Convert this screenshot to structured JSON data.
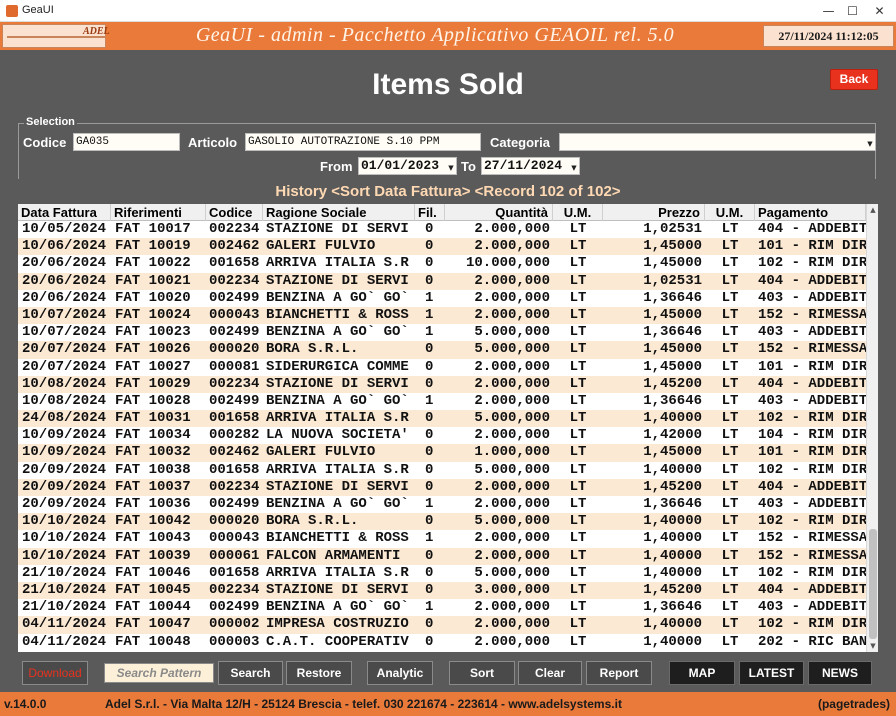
{
  "window": {
    "title": "GeaUI",
    "minimize_glyph": "—",
    "maximize_glyph": "☐",
    "close_glyph": "✕"
  },
  "banner": {
    "logo_text": "ADEL",
    "title": "GeaUI - admin - Pacchetto Applicativo GEAOIL rel. 5.0",
    "datetime": "27/11/2024 11:12:05"
  },
  "page": {
    "title": "Items Sold",
    "back_label": "Back"
  },
  "selection": {
    "legend": "Selection",
    "codice_label": "Codice",
    "codice_value": "GA035",
    "articolo_label": "Articolo",
    "articolo_value": "GASOLIO AUTOTRAZIONE S.10 PPM",
    "categoria_label": "Categoria",
    "categoria_value": "",
    "from_label": "From",
    "from_value": "01/01/2023",
    "to_label": "To",
    "to_value": "27/11/2024"
  },
  "history": {
    "title": "History <Sort Data Fattura> <Record 102 of 102>"
  },
  "table": {
    "headers": [
      "Data Fattura",
      "Riferimenti",
      "Codice",
      "Ragione Sociale",
      "Fil.",
      "Quantità",
      "U.M.",
      "Prezzo",
      "U.M.",
      "Pagamento"
    ],
    "rows": [
      [
        "10/05/2024",
        "FAT 10017",
        "002234",
        "STAZIONE DI SERVI",
        "0",
        "2.000,000",
        "LT",
        "1,02531",
        "LT",
        "404 - ADDEBIT"
      ],
      [
        "10/06/2024",
        "FAT 10019",
        "002462",
        "GALERI FULVIO",
        "0",
        "2.000,000",
        "LT",
        "1,45000",
        "LT",
        "101 - RIM DIR"
      ],
      [
        "20/06/2024",
        "FAT 10022",
        "001658",
        "ARRIVA ITALIA S.R",
        "0",
        "10.000,000",
        "LT",
        "1,45000",
        "LT",
        "102 - RIM DIR"
      ],
      [
        "20/06/2024",
        "FAT 10021",
        "002234",
        "STAZIONE DI SERVI",
        "0",
        "2.000,000",
        "LT",
        "1,02531",
        "LT",
        "404 - ADDEBIT"
      ],
      [
        "20/06/2024",
        "FAT 10020",
        "002499",
        "BENZINA A GO` GO`",
        "1",
        "2.000,000",
        "LT",
        "1,36646",
        "LT",
        "403 - ADDEBIT"
      ],
      [
        "10/07/2024",
        "FAT 10024",
        "000043",
        "BIANCHETTI & ROSS",
        "1",
        "2.000,000",
        "LT",
        "1,45000",
        "LT",
        "152 - RIMESSA"
      ],
      [
        "10/07/2024",
        "FAT 10023",
        "002499",
        "BENZINA A GO` GO`",
        "1",
        "5.000,000",
        "LT",
        "1,36646",
        "LT",
        "403 - ADDEBIT"
      ],
      [
        "20/07/2024",
        "FAT 10026",
        "000020",
        "BORA S.R.L.",
        "0",
        "5.000,000",
        "LT",
        "1,45000",
        "LT",
        "152 - RIMESSA"
      ],
      [
        "20/07/2024",
        "FAT 10027",
        "000081",
        "SIDERURGICA COMME",
        "0",
        "2.000,000",
        "LT",
        "1,45000",
        "LT",
        "101 - RIM DIR"
      ],
      [
        "10/08/2024",
        "FAT 10029",
        "002234",
        "STAZIONE DI SERVI",
        "0",
        "2.000,000",
        "LT",
        "1,45200",
        "LT",
        "404 - ADDEBIT"
      ],
      [
        "10/08/2024",
        "FAT 10028",
        "002499",
        "BENZINA A GO` GO`",
        "1",
        "2.000,000",
        "LT",
        "1,36646",
        "LT",
        "403 - ADDEBIT"
      ],
      [
        "24/08/2024",
        "FAT 10031",
        "001658",
        "ARRIVA ITALIA S.R",
        "0",
        "5.000,000",
        "LT",
        "1,40000",
        "LT",
        "102 - RIM DIR"
      ],
      [
        "10/09/2024",
        "FAT 10034",
        "000282",
        "LA NUOVA SOCIETA'",
        "0",
        "2.000,000",
        "LT",
        "1,42000",
        "LT",
        "104 - RIM DIR"
      ],
      [
        "10/09/2024",
        "FAT 10032",
        "002462",
        "GALERI FULVIO",
        "0",
        "1.000,000",
        "LT",
        "1,45000",
        "LT",
        "101 - RIM DIR"
      ],
      [
        "20/09/2024",
        "FAT 10038",
        "001658",
        "ARRIVA ITALIA S.R",
        "0",
        "5.000,000",
        "LT",
        "1,40000",
        "LT",
        "102 - RIM DIR"
      ],
      [
        "20/09/2024",
        "FAT 10037",
        "002234",
        "STAZIONE DI SERVI",
        "0",
        "2.000,000",
        "LT",
        "1,45200",
        "LT",
        "404 - ADDEBIT"
      ],
      [
        "20/09/2024",
        "FAT 10036",
        "002499",
        "BENZINA A GO` GO`",
        "1",
        "2.000,000",
        "LT",
        "1,36646",
        "LT",
        "403 - ADDEBIT"
      ],
      [
        "10/10/2024",
        "FAT 10042",
        "000020",
        "BORA S.R.L.",
        "0",
        "5.000,000",
        "LT",
        "1,40000",
        "LT",
        "102 - RIM DIR"
      ],
      [
        "10/10/2024",
        "FAT 10043",
        "000043",
        "BIANCHETTI & ROSS",
        "1",
        "2.000,000",
        "LT",
        "1,40000",
        "LT",
        "152 - RIMESSA"
      ],
      [
        "10/10/2024",
        "FAT 10039",
        "000061",
        "FALCON ARMAMENTI",
        "0",
        "2.000,000",
        "LT",
        "1,40000",
        "LT",
        "152 - RIMESSA"
      ],
      [
        "21/10/2024",
        "FAT 10046",
        "001658",
        "ARRIVA ITALIA S.R",
        "0",
        "5.000,000",
        "LT",
        "1,40000",
        "LT",
        "102 - RIM DIR"
      ],
      [
        "21/10/2024",
        "FAT 10045",
        "002234",
        "STAZIONE DI SERVI",
        "0",
        "3.000,000",
        "LT",
        "1,45200",
        "LT",
        "404 - ADDEBIT"
      ],
      [
        "21/10/2024",
        "FAT 10044",
        "002499",
        "BENZINA A GO` GO`",
        "1",
        "2.000,000",
        "LT",
        "1,36646",
        "LT",
        "403 - ADDEBIT"
      ],
      [
        "04/11/2024",
        "FAT 10047",
        "000002",
        "IMPRESA COSTRUZIO",
        "0",
        "2.000,000",
        "LT",
        "1,40000",
        "LT",
        "102 - RIM DIR"
      ],
      [
        "04/11/2024",
        "FAT 10048",
        "000003",
        "C.A.T. COOPERATIV",
        "0",
        "2.000,000",
        "LT",
        "1,40000",
        "LT",
        "202 - RIC BAN"
      ]
    ]
  },
  "buttons": {
    "download": "Download",
    "search_pattern": "Search Pattern",
    "search": "Search",
    "restore": "Restore",
    "analytic": "Analytic",
    "sort": "Sort",
    "clear": "Clear",
    "report": "Report",
    "map": "MAP",
    "latest": "LATEST",
    "news": "NEWS"
  },
  "status": {
    "version": "v.14.0.0",
    "company": "Adel S.r.l. - Via Malta 12/H - 25124 Brescia - telef. 030 221674 - 223614 - www.adelsystems.it",
    "page_id": "(pagetrades)"
  },
  "colors": {
    "accent_orange": "#e97a3a",
    "back_red": "#e8321e",
    "row_alt": "#fbe9d4",
    "history_title": "#ffd9b3"
  }
}
